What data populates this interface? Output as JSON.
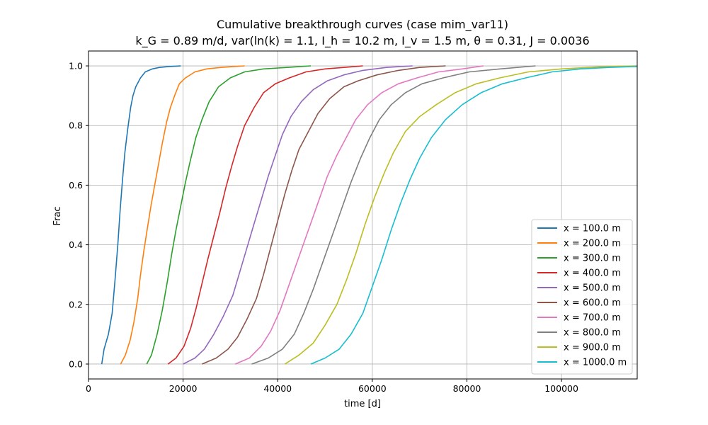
{
  "chart_data": {
    "type": "line",
    "title": "Cumulative breakthrough curves (case mim_var11)",
    "subtitle": "k_G = 0.89 m/d, var(ln(k) = 1.1, I_h = 10.2 m, I_v = 1.5 m, θ = 0.31, J = 0.0036",
    "xlabel": "time [d]",
    "ylabel": "Frac",
    "xlim": [
      0,
      116000
    ],
    "ylim": [
      -0.05,
      1.05
    ],
    "xticks": [
      0,
      20000,
      40000,
      60000,
      80000,
      100000
    ],
    "yticks": [
      0.0,
      0.2,
      0.4,
      0.6,
      0.8,
      1.0
    ],
    "xtick_labels": [
      "0",
      "20000",
      "40000",
      "60000",
      "80000",
      "100000"
    ],
    "ytick_labels": [
      "0.0",
      "0.2",
      "0.4",
      "0.6",
      "0.8",
      "1.0"
    ],
    "grid": true,
    "legend_position": "lower-right",
    "series": [
      {
        "name": "x = 100.0 m",
        "color": "#1f77b4",
        "x": [
          2800,
          3300,
          4200,
          5000,
          5600,
          6200,
          6700,
          7200,
          7700,
          8300,
          8900,
          9400,
          10000,
          11000,
          12000,
          13500,
          15000,
          17000,
          19500
        ],
        "y": [
          0.0,
          0.05,
          0.1,
          0.17,
          0.28,
          0.4,
          0.52,
          0.62,
          0.71,
          0.79,
          0.86,
          0.9,
          0.93,
          0.96,
          0.98,
          0.99,
          0.995,
          0.998,
          1.0
        ]
      },
      {
        "name": "x = 200.0 m",
        "color": "#ff7f0e",
        "x": [
          6800,
          7800,
          8800,
          9600,
          10400,
          11000,
          11700,
          12400,
          13200,
          14000,
          14800,
          15600,
          16500,
          17300,
          18200,
          19200,
          20500,
          22500,
          25000,
          28000,
          33000
        ],
        "y": [
          0.0,
          0.03,
          0.08,
          0.14,
          0.22,
          0.3,
          0.38,
          0.45,
          0.53,
          0.6,
          0.67,
          0.74,
          0.81,
          0.86,
          0.9,
          0.94,
          0.96,
          0.98,
          0.99,
          0.995,
          1.0
        ]
      },
      {
        "name": "x = 300.0 m",
        "color": "#2ca02c",
        "x": [
          12300,
          13300,
          14500,
          15600,
          16700,
          17600,
          18500,
          19500,
          20500,
          21500,
          22700,
          24000,
          25500,
          27500,
          30000,
          33000,
          37000,
          42000,
          47000
        ],
        "y": [
          0.0,
          0.03,
          0.1,
          0.18,
          0.28,
          0.37,
          0.45,
          0.53,
          0.61,
          0.68,
          0.76,
          0.82,
          0.88,
          0.93,
          0.96,
          0.98,
          0.99,
          0.995,
          1.0
        ]
      },
      {
        "name": "x = 400.0 m",
        "color": "#d62728",
        "x": [
          16800,
          18500,
          20200,
          21600,
          22800,
          24000,
          25200,
          26500,
          27800,
          29000,
          30200,
          31500,
          33000,
          35000,
          37000,
          39500,
          42500,
          46000,
          50000,
          54000,
          58000
        ],
        "y": [
          0.0,
          0.02,
          0.06,
          0.12,
          0.19,
          0.27,
          0.35,
          0.43,
          0.51,
          0.59,
          0.66,
          0.73,
          0.8,
          0.86,
          0.91,
          0.94,
          0.96,
          0.98,
          0.99,
          0.995,
          1.0
        ]
      },
      {
        "name": "x = 500.0 m",
        "color": "#9467bd",
        "x": [
          20000,
          22500,
          24500,
          26500,
          28500,
          30500,
          32000,
          33500,
          35000,
          36500,
          38000,
          39500,
          41000,
          42800,
          45000,
          47500,
          50500,
          54000,
          58000,
          63000,
          68500
        ],
        "y": [
          0.0,
          0.02,
          0.05,
          0.1,
          0.16,
          0.23,
          0.31,
          0.39,
          0.47,
          0.55,
          0.63,
          0.7,
          0.77,
          0.83,
          0.88,
          0.92,
          0.95,
          0.97,
          0.985,
          0.995,
          1.0
        ]
      },
      {
        "name": "x = 600.0 m",
        "color": "#8c564b",
        "x": [
          24000,
          27000,
          29500,
          31500,
          33500,
          35500,
          37000,
          38500,
          40000,
          41500,
          43000,
          44500,
          46500,
          48500,
          51000,
          54000,
          57000,
          61000,
          65500,
          70000,
          75500
        ],
        "y": [
          0.0,
          0.02,
          0.05,
          0.09,
          0.15,
          0.22,
          0.3,
          0.39,
          0.48,
          0.57,
          0.65,
          0.72,
          0.78,
          0.84,
          0.89,
          0.93,
          0.95,
          0.97,
          0.985,
          0.995,
          1.0
        ]
      },
      {
        "name": "x = 700.0 m",
        "color": "#e377c2",
        "x": [
          31000,
          34000,
          36500,
          38500,
          40500,
          42500,
          44500,
          46500,
          48500,
          50500,
          52500,
          54500,
          56500,
          59000,
          62000,
          65500,
          69500,
          74000,
          79000,
          83500
        ],
        "y": [
          0.0,
          0.02,
          0.06,
          0.11,
          0.18,
          0.27,
          0.36,
          0.45,
          0.54,
          0.63,
          0.7,
          0.76,
          0.82,
          0.87,
          0.91,
          0.94,
          0.96,
          0.98,
          0.99,
          1.0
        ]
      },
      {
        "name": "x = 800.0 m",
        "color": "#7f7f7f",
        "x": [
          34500,
          38000,
          41000,
          43500,
          45500,
          47500,
          49500,
          51500,
          53500,
          55500,
          57500,
          59500,
          61500,
          64000,
          67000,
          70500,
          75000,
          80500,
          87000,
          94500
        ],
        "y": [
          0.0,
          0.02,
          0.05,
          0.1,
          0.17,
          0.25,
          0.34,
          0.43,
          0.52,
          0.61,
          0.69,
          0.76,
          0.82,
          0.87,
          0.91,
          0.94,
          0.96,
          0.98,
          0.99,
          1.0
        ]
      },
      {
        "name": "x = 900.0 m",
        "color": "#bcbd22",
        "x": [
          41500,
          44500,
          47500,
          50000,
          52500,
          54500,
          56500,
          58500,
          60500,
          62500,
          64500,
          67000,
          70000,
          73500,
          77500,
          82000,
          87000,
          93000,
          100000,
          108000,
          116000
        ],
        "y": [
          0.0,
          0.03,
          0.07,
          0.13,
          0.2,
          0.28,
          0.37,
          0.47,
          0.56,
          0.64,
          0.71,
          0.78,
          0.83,
          0.87,
          0.91,
          0.94,
          0.96,
          0.98,
          0.99,
          0.997,
          1.0
        ]
      },
      {
        "name": "x = 1000.0 m",
        "color": "#17becf",
        "x": [
          47000,
          50000,
          53000,
          55500,
          58000,
          60000,
          62000,
          64000,
          66000,
          68000,
          70000,
          72500,
          75500,
          79000,
          83000,
          87500,
          92500,
          98000,
          104000,
          110000,
          116000
        ],
        "y": [
          0.0,
          0.02,
          0.05,
          0.1,
          0.17,
          0.26,
          0.35,
          0.45,
          0.54,
          0.62,
          0.69,
          0.76,
          0.82,
          0.87,
          0.91,
          0.94,
          0.96,
          0.98,
          0.99,
          0.995,
          0.998
        ]
      }
    ]
  }
}
